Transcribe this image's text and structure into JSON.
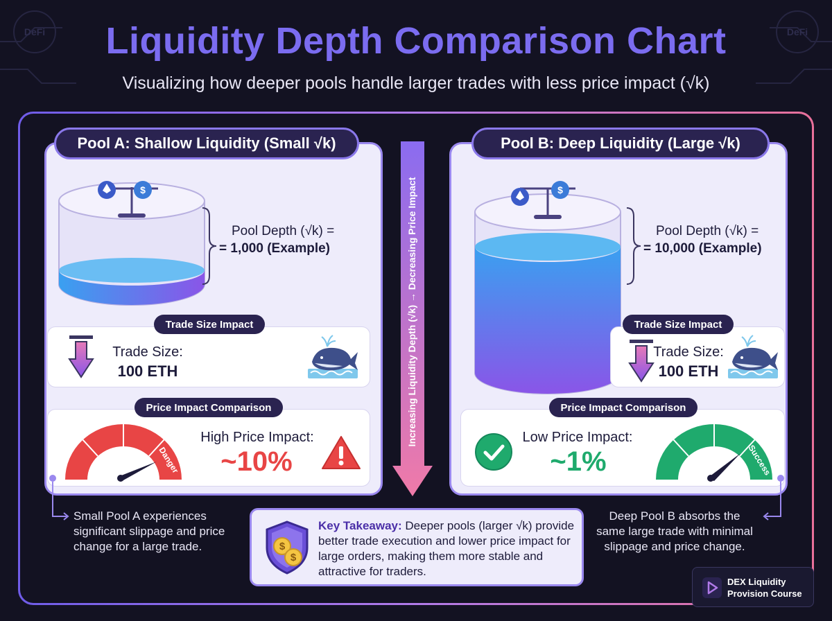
{
  "title": "Liquidity Depth Comparison Chart",
  "subtitle": "Visualizing how deeper pools handle larger trades with less price impact (√k)",
  "watermark": "DeFi",
  "colors": {
    "accent_purple": "#7b6cf0",
    "danger_red": "#e84545",
    "success_green": "#1faa6d",
    "liquidity_blue": "#3aa0f0",
    "liquidity_violet": "#8a55e8"
  },
  "pool_a": {
    "title": "Pool A: Shallow Liquidity (Small √k)",
    "depth_label": "Pool Depth (√k) =",
    "depth_value": "= 1,000 (Example)",
    "fill_level": 0.18,
    "trade_tag": "Trade Size Impact",
    "trade_label": "Trade Size:",
    "trade_value": "100 ETH",
    "impact_tag": "Price Impact Comparison",
    "impact_label": "High Price Impact:",
    "impact_value": "~10%",
    "gauge_label": "Danger",
    "note": "Small Pool A experiences significant slippage and price change for a large trade."
  },
  "pool_b": {
    "title": "Pool B: Deep Liquidity (Large √k)",
    "depth_label": "Pool Depth (√k) =",
    "depth_value": "= 10,000 (Example)",
    "fill_level": 0.85,
    "trade_tag": "Trade Size Impact",
    "trade_label": "Trade Size:",
    "trade_value": "100 ETH",
    "impact_tag": "Price Impact Comparison",
    "impact_label": "Low Price Impact:",
    "impact_value": "~1%",
    "gauge_label": "Success",
    "note": "Deep Pool B absorbs the same large trade with minimal slippage and price change."
  },
  "center_arrow_label": "Increasing Liquidity Depth (√k) → Decreasing Price Impact",
  "takeaway": {
    "heading": "Key Takeaway:",
    "body": "Deeper pools (larger √k) provide better trade execution and lower price impact for large orders, making them more stable and attractive for traders."
  },
  "logo": {
    "line1": "DEX Liquidity",
    "line2": "Provision Course"
  }
}
